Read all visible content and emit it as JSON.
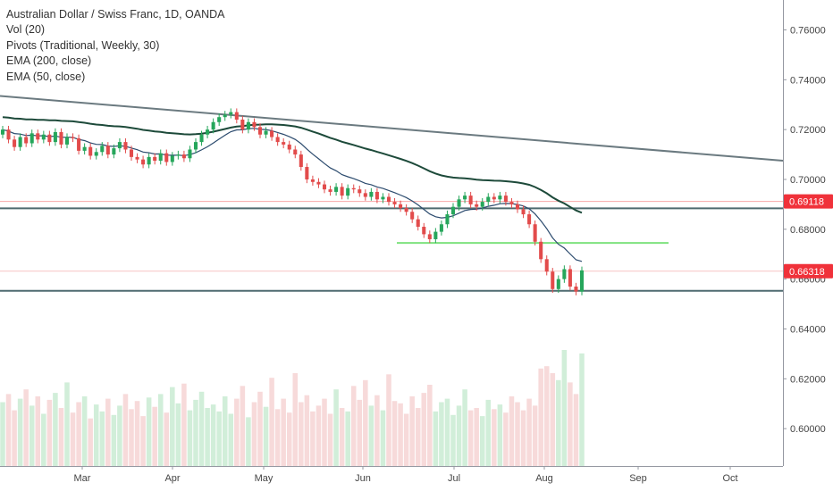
{
  "chart_data": {
    "type": "candlestick",
    "title": "Australian Dollar / Swiss Franc, 1D, OANDA",
    "indicators": [
      "Vol (20)",
      "Pivots (Traditional, Weekly, 30)",
      "EMA (200, close)",
      "EMA (50, close)"
    ],
    "y_ticks": [
      "0.76000",
      "0.74000",
      "0.72000",
      "0.70000",
      "0.68000",
      "0.66000",
      "0.64000",
      "0.62000",
      "0.60000"
    ],
    "y_tick_values": [
      0.76,
      0.74,
      0.72,
      0.7,
      0.68,
      0.66,
      0.64,
      0.62,
      0.6
    ],
    "x_ticks": [
      "Mar",
      "Apr",
      "May",
      "Jun",
      "Jul",
      "Aug",
      "Sep",
      "Oct"
    ],
    "ylim": [
      0.585,
      0.772
    ],
    "price_tags": [
      {
        "label": "0.69118",
        "value": 0.69118,
        "color": "#f0313a"
      },
      {
        "label": "0.66318",
        "value": 0.66318,
        "color": "#f0313a"
      }
    ],
    "horizontal_lines": [
      {
        "value": 0.69118,
        "color": "#f7a8a8"
      },
      {
        "value": 0.6884,
        "color": "#4f6b70"
      },
      {
        "value": 0.66318,
        "color": "#f7c4c4"
      },
      {
        "value": 0.6553,
        "color": "#4f6b70"
      }
    ],
    "support_line": {
      "value": 0.6745,
      "color": "#7ee27e"
    },
    "trendline": {
      "start": 0.7335,
      "end": 0.7075,
      "color": "#6b7a80"
    },
    "close_series": [
      0.72,
      0.716,
      0.713,
      0.717,
      0.7145,
      0.7185,
      0.716,
      0.718,
      0.715,
      0.719,
      0.714,
      0.717,
      0.7165,
      0.7115,
      0.713,
      0.7095,
      0.711,
      0.7135,
      0.71,
      0.7125,
      0.715,
      0.712,
      0.709,
      0.708,
      0.706,
      0.709,
      0.7075,
      0.7105,
      0.707,
      0.7095,
      0.71,
      0.7085,
      0.712,
      0.715,
      0.718,
      0.72,
      0.723,
      0.725,
      0.726,
      0.727,
      0.724,
      0.72,
      0.723,
      0.721,
      0.718,
      0.7195,
      0.717,
      0.715,
      0.714,
      0.712,
      0.71,
      0.705,
      0.7,
      0.699,
      0.698,
      0.696,
      0.695,
      0.697,
      0.6935,
      0.6965,
      0.696,
      0.6945,
      0.693,
      0.695,
      0.692,
      0.693,
      0.691,
      0.69,
      0.6885,
      0.687,
      0.684,
      0.681,
      0.678,
      0.676,
      0.679,
      0.682,
      0.686,
      0.689,
      0.692,
      0.6935,
      0.69,
      0.689,
      0.691,
      0.693,
      0.692,
      0.6935,
      0.691,
      0.69,
      0.688,
      0.686,
      0.682,
      0.675,
      0.668,
      0.663,
      0.656,
      0.66,
      0.664,
      0.657,
      0.655,
      0.6635
    ],
    "volume_series": [
      0.55,
      0.62,
      0.48,
      0.58,
      0.66,
      0.52,
      0.6,
      0.45,
      0.57,
      0.63,
      0.5,
      0.72,
      0.46,
      0.55,
      0.6,
      0.41,
      0.53,
      0.47,
      0.58,
      0.44,
      0.52,
      0.62,
      0.49,
      0.56,
      0.43,
      0.59,
      0.51,
      0.62,
      0.46,
      0.68,
      0.54,
      0.71,
      0.48,
      0.57,
      0.64,
      0.5,
      0.53,
      0.47,
      0.6,
      0.45,
      0.58,
      0.69,
      0.42,
      0.55,
      0.64,
      0.51,
      0.76,
      0.49,
      0.58,
      0.46,
      0.8,
      0.55,
      0.61,
      0.47,
      0.52,
      0.58,
      0.45,
      0.66,
      0.5,
      0.47,
      0.69,
      0.57,
      0.74,
      0.52,
      0.61,
      0.48,
      0.79,
      0.56,
      0.54,
      0.45,
      0.6,
      0.5,
      0.63,
      0.7,
      0.47,
      0.55,
      0.58,
      0.44,
      0.52,
      0.66,
      0.48,
      0.5,
      0.43,
      0.57,
      0.49,
      0.53,
      0.46,
      0.6,
      0.55,
      0.48,
      0.58,
      0.52,
      0.84,
      0.86,
      0.8,
      0.74,
      1.0,
      0.72,
      0.62,
      0.97
    ]
  }
}
